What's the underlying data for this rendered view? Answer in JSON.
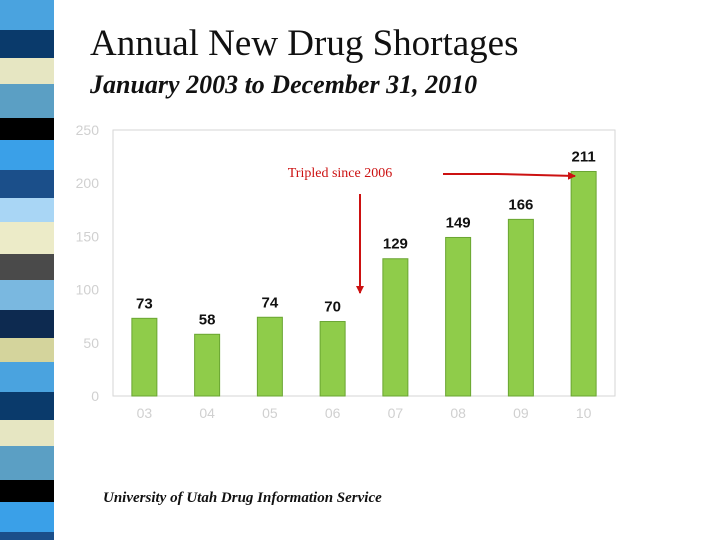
{
  "slide": {
    "title": "Annual New Drug Shortages",
    "subtitle": "January 2003 to December 31, 2010",
    "footer": "University of Utah Drug Information Service"
  },
  "colors": {
    "bar": "#8fcc4a",
    "bar_edge": "#6aa532",
    "annotation": "#cc1111",
    "strip": [
      "#4aa3df",
      "#0a3a6b",
      "#e6e6c2",
      "#5b9fc4",
      "#000000",
      "#3aa0e8",
      "#1b4f8a",
      "#a9d6f5",
      "#ecebc8",
      "#4a4a4a",
      "#7ab8e0",
      "#0d2a50",
      "#d4d49c"
    ]
  },
  "chart_data": {
    "type": "bar",
    "categories": [
      "03",
      "04",
      "05",
      "06",
      "07",
      "08",
      "09",
      "10"
    ],
    "values": [
      73,
      58,
      74,
      70,
      129,
      149,
      166,
      211
    ],
    "yticks": [
      0,
      50,
      100,
      150,
      200,
      250
    ],
    "ylim": [
      0,
      250
    ],
    "grid": false,
    "title": "",
    "xlabel": "",
    "ylabel": "",
    "annotations": [
      {
        "text": "Tripled since 2006"
      }
    ]
  }
}
